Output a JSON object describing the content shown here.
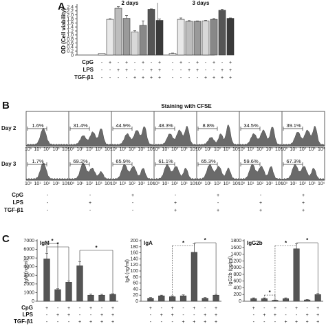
{
  "panels": {
    "A": {
      "letter": "A",
      "ylabel": "OD (Cell viability)",
      "yticks": [
        "0",
        "0.2",
        "0.4",
        "0.6",
        "0.8",
        "1.0",
        "1.2",
        "1.4",
        "1.6",
        "1.8",
        "2.0",
        "2.2",
        "2.4"
      ],
      "groups": [
        "2 days",
        "3 days"
      ]
    },
    "B": {
      "letter": "B",
      "title": "Staining with CFSE",
      "rows": [
        "Day 2",
        "Day 3"
      ],
      "xtick_label": "10",
      "xtick_exps": [
        "0",
        "1",
        "2",
        "3",
        "4"
      ]
    },
    "C": {
      "letter": "C"
    }
  },
  "conditions": {
    "row_labels": [
      "CpG",
      "LPS",
      "TGF-β1"
    ],
    "cpg": [
      "-",
      "+",
      "-",
      "+",
      "-",
      "+",
      "-",
      "+"
    ],
    "lps": [
      "-",
      "-",
      "+",
      "+",
      "-",
      "-",
      "+",
      "+"
    ],
    "tgf": [
      "-",
      "-",
      "-",
      "-",
      "+",
      "+",
      "+",
      "+"
    ]
  },
  "chart_data": [
    {
      "type": "bar",
      "panel": "A",
      "ylabel": "OD (Cell viability)",
      "ylim": [
        0,
        2.4
      ],
      "groups": [
        {
          "name": "2 days",
          "values": [
            0.08,
            1.78,
            2.33,
            1.83,
            1.15,
            1.48,
            2.28,
            1.73
          ],
          "errors": [
            0.01,
            0.03,
            0.08,
            0.14,
            0.06,
            0.22,
            0.02,
            0.06
          ],
          "colors": [
            "#ffffff",
            "#e8e8e8",
            "#bdbdbd",
            "#9a9a9a",
            "#d8d8d8",
            "#888888",
            "#555555",
            "#3a3a3a"
          ]
        },
        {
          "name": "3 days",
          "values": [
            0.08,
            1.78,
            1.68,
            1.68,
            1.7,
            1.78,
            2.23,
            1.83
          ],
          "errors": [
            0.02,
            0.07,
            0.04,
            0.02,
            0.03,
            0.04,
            0.05,
            0.02
          ],
          "colors": [
            "#ffffff",
            "#e8e8e8",
            "#bdbdbd",
            "#9a9a9a",
            "#d8d8d8",
            "#888888",
            "#555555",
            "#3a3a3a"
          ]
        }
      ]
    },
    {
      "type": "area",
      "panel": "B",
      "title": "Staining with CFSE",
      "rows": [
        {
          "name": "Day 2",
          "percentages": [
            "1.6%",
            "31.4%",
            "44.9%",
            "48.3%",
            "8.8%",
            "34.5%",
            "39.1%"
          ]
        },
        {
          "name": "Day 3",
          "percentages": [
            "1.7%",
            "69.2%",
            "65.9%",
            "61.1%",
            "65.3%",
            "59.6%",
            "67.3%"
          ]
        }
      ]
    },
    {
      "type": "bar",
      "panel": "C",
      "title": "IgM",
      "ylabel": "IgM (ng/ml)",
      "ylim": [
        0,
        7000
      ],
      "yticks": [
        "0",
        "1000",
        "2000",
        "3000",
        "4000",
        "5000",
        "6000",
        "7000"
      ],
      "values": [
        4900,
        1350,
        2200,
        4100,
        700,
        700,
        800
      ],
      "errors": [
        650,
        100,
        150,
        500,
        120,
        100,
        80
      ],
      "significance": [
        {
          "from": 0,
          "to": 1,
          "label": "*"
        },
        {
          "from": 0,
          "to": 2,
          "label": "*"
        },
        {
          "from": 3,
          "to": 6,
          "label": "*"
        }
      ]
    },
    {
      "type": "bar",
      "panel": "C",
      "title": "IgA",
      "ylabel": "IgA (ng/ml)",
      "ylim": [
        0,
        200
      ],
      "yticks": [
        "0",
        "20",
        "40",
        "60",
        "80",
        "100",
        "120",
        "140",
        "160",
        "180",
        "200"
      ],
      "values": [
        10,
        18,
        15,
        18,
        162,
        10,
        20
      ],
      "errors": [
        2,
        2,
        3,
        3,
        28,
        2,
        3
      ],
      "significance": [
        {
          "from": 2,
          "to": 4,
          "label": "*"
        },
        {
          "from": 4,
          "to": 6,
          "label": "*"
        }
      ]
    },
    {
      "type": "bar",
      "panel": "C",
      "title": "IgG2b",
      "ylabel": "IgG2b (ng/ml)",
      "ylim": [
        0,
        1800
      ],
      "yticks": [
        "0",
        "200",
        "400",
        "600",
        "800",
        "1000",
        "1200",
        "1400",
        "1600",
        "1800"
      ],
      "values": [
        80,
        80,
        30,
        80,
        1560,
        40,
        200
      ],
      "errors": [
        20,
        20,
        10,
        20,
        150,
        10,
        30
      ],
      "significance": [
        {
          "from": 1,
          "to": 2,
          "label": "*"
        },
        {
          "from": 2,
          "to": 4,
          "label": "*"
        },
        {
          "from": 4,
          "to": 6,
          "label": "*"
        }
      ]
    }
  ]
}
